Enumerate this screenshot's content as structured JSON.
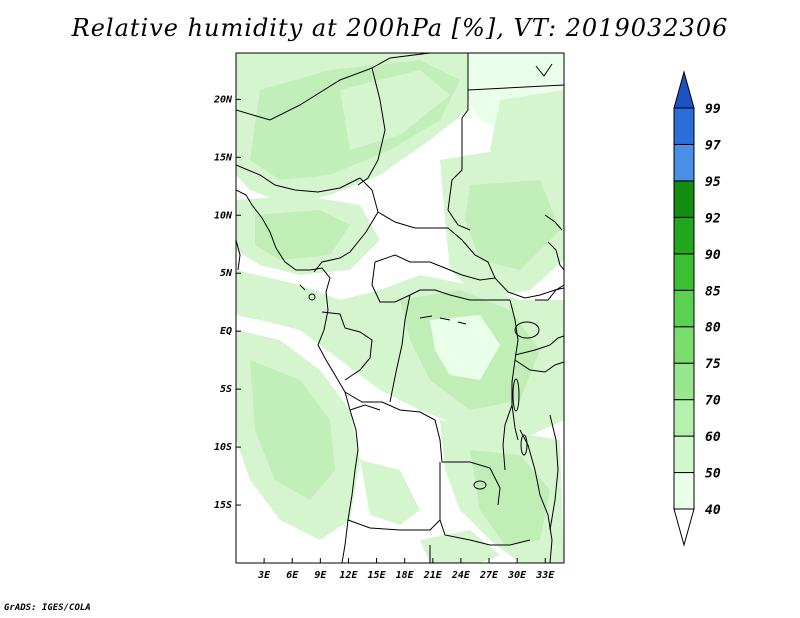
{
  "title": "Relative humidity at 200hPa [%], VT: 2019032306",
  "credit": "GrADS: IGES/COLA",
  "map": {
    "region": "Central Africa",
    "lon_range_deg": [
      0,
      35
    ],
    "lat_range_deg": [
      -20,
      24
    ],
    "lat_labels": [
      {
        "lat": 20,
        "text": "20N"
      },
      {
        "lat": 15,
        "text": "15N"
      },
      {
        "lat": 10,
        "text": "10N"
      },
      {
        "lat": 5,
        "text": "5N"
      },
      {
        "lat": 0,
        "text": "EQ"
      },
      {
        "lat": -5,
        "text": "5S"
      },
      {
        "lat": -10,
        "text": "10S"
      },
      {
        "lat": -15,
        "text": "15S"
      }
    ],
    "lon_labels": [
      {
        "lon": 3,
        "text": "3E"
      },
      {
        "lon": 6,
        "text": "6E"
      },
      {
        "lon": 9,
        "text": "9E"
      },
      {
        "lon": 12,
        "text": "12E"
      },
      {
        "lon": 15,
        "text": "15E"
      },
      {
        "lon": 18,
        "text": "18E"
      },
      {
        "lon": 21,
        "text": "21E"
      },
      {
        "lon": 24,
        "text": "24E"
      },
      {
        "lon": 27,
        "text": "27E"
      },
      {
        "lon": 30,
        "text": "30E"
      },
      {
        "lon": 33,
        "text": "33E"
      }
    ]
  },
  "colorbar": {
    "levels": [
      "40",
      "50",
      "60",
      "70",
      "75",
      "80",
      "85",
      "90",
      "92",
      "95",
      "97",
      "99"
    ],
    "colors": [
      "#ffffff",
      "#eaffea",
      "#d1f7cd",
      "#b7efb0",
      "#98e68e",
      "#7add6e",
      "#5cd050",
      "#3ebe35",
      "#23a51e",
      "#128d10",
      "#4a90e8",
      "#2a6fd8",
      "#1d52c4"
    ]
  },
  "colors": {
    "land_line": "#000000",
    "humid_light": "#d5f5cf",
    "humid_mid": "#bdecb3"
  }
}
